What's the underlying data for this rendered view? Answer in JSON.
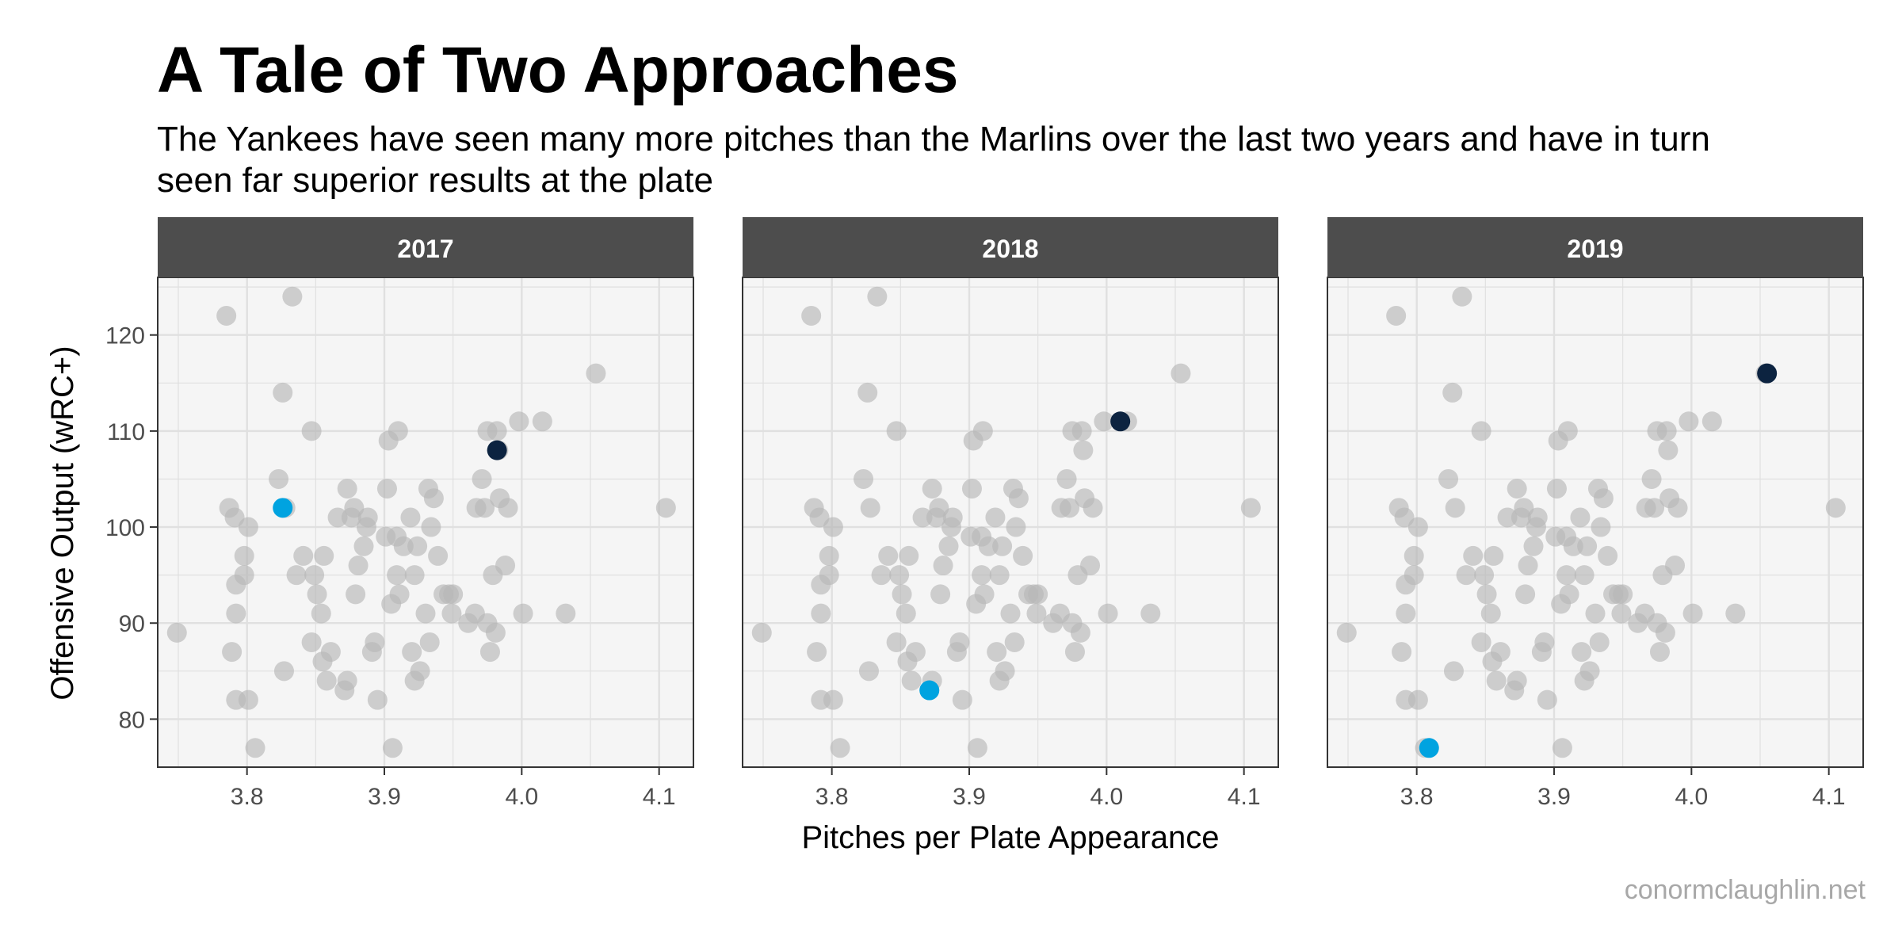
{
  "header": {
    "title": "A Tale of Two Approaches",
    "subtitle": "The Yankees have seen many more pitches than the Marlins over the last two years and have in turn seen far superior results at the plate"
  },
  "footer": {
    "credit": "conormclaughlin.net"
  },
  "colors": {
    "background_points": "#b7b7b7",
    "yankees": "#0c2340",
    "marlins": "#00a3e0",
    "strip_background": "#4d4d4d",
    "panel_background": "#f5f5f5",
    "grid": "#e0e0e0"
  },
  "chart_data": {
    "type": "scatter",
    "xlabel": "Pitches per Plate Appearance",
    "ylabel": "Offensive Output (wRC+)",
    "xlim": [
      3.735,
      4.125
    ],
    "ylim": [
      75,
      126
    ],
    "xticks": [
      3.8,
      3.9,
      4.0,
      4.1
    ],
    "xtick_labels": [
      "3.8",
      "3.9",
      "4.0",
      "4.1"
    ],
    "yticks": [
      80,
      90,
      100,
      110,
      120
    ],
    "ytick_labels": [
      "80",
      "90",
      "100",
      "110",
      "120"
    ],
    "grid": true,
    "legend": "none",
    "facets": [
      "2017",
      "2018",
      "2019"
    ],
    "background_points": [
      [
        3.749,
        89
      ],
      [
        3.785,
        122
      ],
      [
        3.787,
        102
      ],
      [
        3.789,
        87
      ],
      [
        3.791,
        101
      ],
      [
        3.792,
        94
      ],
      [
        3.792,
        91
      ],
      [
        3.792,
        82
      ],
      [
        3.798,
        97
      ],
      [
        3.798,
        95
      ],
      [
        3.801,
        100
      ],
      [
        3.801,
        82
      ],
      [
        3.806,
        77
      ],
      [
        3.823,
        105
      ],
      [
        3.826,
        114
      ],
      [
        3.827,
        85
      ],
      [
        3.828,
        102
      ],
      [
        3.833,
        124
      ],
      [
        3.836,
        95
      ],
      [
        3.841,
        97
      ],
      [
        3.847,
        110
      ],
      [
        3.847,
        88
      ],
      [
        3.849,
        95
      ],
      [
        3.851,
        93
      ],
      [
        3.854,
        91
      ],
      [
        3.855,
        86
      ],
      [
        3.856,
        97
      ],
      [
        3.858,
        84
      ],
      [
        3.861,
        87
      ],
      [
        3.866,
        101
      ],
      [
        3.871,
        83
      ],
      [
        3.873,
        104
      ],
      [
        3.873,
        84
      ],
      [
        3.876,
        101
      ],
      [
        3.878,
        102
      ],
      [
        3.879,
        93
      ],
      [
        3.881,
        96
      ],
      [
        3.885,
        98
      ],
      [
        3.887,
        100
      ],
      [
        3.888,
        101
      ],
      [
        3.891,
        87
      ],
      [
        3.893,
        88
      ],
      [
        3.895,
        82
      ],
      [
        3.901,
        99
      ],
      [
        3.902,
        104
      ],
      [
        3.903,
        109
      ],
      [
        3.905,
        92
      ],
      [
        3.906,
        77
      ],
      [
        3.909,
        95
      ],
      [
        3.909,
        99
      ],
      [
        3.91,
        110
      ],
      [
        3.911,
        93
      ],
      [
        3.914,
        98
      ],
      [
        3.919,
        101
      ],
      [
        3.92,
        87
      ],
      [
        3.922,
        95
      ],
      [
        3.922,
        84
      ],
      [
        3.924,
        98
      ],
      [
        3.926,
        85
      ],
      [
        3.93,
        91
      ],
      [
        3.932,
        104
      ],
      [
        3.933,
        88
      ],
      [
        3.934,
        100
      ],
      [
        3.936,
        103
      ],
      [
        3.939,
        97
      ],
      [
        3.943,
        93
      ],
      [
        3.947,
        93
      ],
      [
        3.949,
        91
      ],
      [
        3.95,
        93
      ],
      [
        3.961,
        90
      ],
      [
        3.966,
        91
      ],
      [
        3.967,
        102
      ],
      [
        3.971,
        105
      ],
      [
        3.973,
        102
      ],
      [
        3.975,
        90
      ],
      [
        3.975,
        110
      ],
      [
        3.977,
        87
      ],
      [
        3.979,
        95
      ],
      [
        3.981,
        89
      ],
      [
        3.982,
        110
      ],
      [
        3.983,
        108
      ],
      [
        3.984,
        103
      ],
      [
        3.988,
        96
      ],
      [
        3.99,
        102
      ],
      [
        3.998,
        111
      ],
      [
        4.001,
        91
      ],
      [
        4.015,
        111
      ],
      [
        4.032,
        91
      ],
      [
        4.054,
        116
      ],
      [
        4.105,
        102
      ]
    ],
    "highlights": [
      {
        "facet": "2017",
        "team": "yankees",
        "x": 3.982,
        "y": 108
      },
      {
        "facet": "2017",
        "team": "marlins",
        "x": 3.826,
        "y": 102
      },
      {
        "facet": "2018",
        "team": "yankees",
        "x": 4.01,
        "y": 111
      },
      {
        "facet": "2018",
        "team": "marlins",
        "x": 3.871,
        "y": 83
      },
      {
        "facet": "2019",
        "team": "yankees",
        "x": 4.055,
        "y": 116
      },
      {
        "facet": "2019",
        "team": "marlins",
        "x": 3.809,
        "y": 77
      }
    ]
  }
}
